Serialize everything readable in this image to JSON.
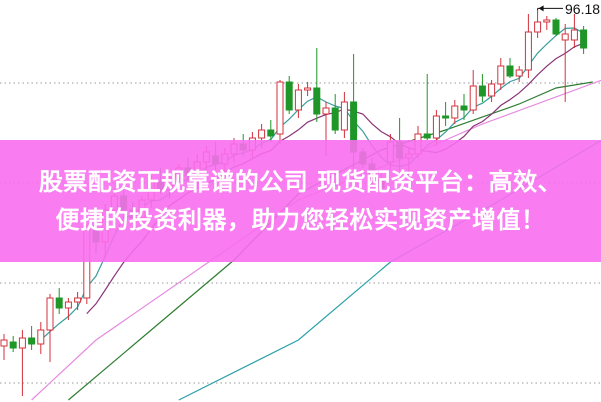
{
  "banner": {
    "line1": "股票配资正规靠谱的公司 现货配资平台：高效、",
    "line2": "便捷的投资利器，助力您轻松实现资产增值！"
  },
  "chart_data": {
    "type": "candlestick",
    "title": "",
    "grid": true,
    "high_label": "96.18",
    "colors": {
      "up": "#d2323c",
      "down": "#1e9628",
      "ma_short": "#3a9c9c",
      "ma_mid": "#8a3478",
      "pink_line": "#e58be0",
      "green_line": "#2e7d32",
      "teal_line": "#2aa0a8",
      "banner": "#f86eee"
    },
    "candles": [
      [
        79.4,
        80.0,
        78.7,
        79.7
      ],
      [
        79.6,
        79.9,
        79.1,
        79.3
      ],
      [
        79.3,
        80.2,
        76.9,
        79.8
      ],
      [
        79.8,
        80.4,
        79.2,
        79.5
      ],
      [
        79.5,
        80.6,
        79.0,
        80.2
      ],
      [
        80.2,
        82.0,
        78.6,
        81.8
      ],
      [
        81.8,
        82.3,
        81.0,
        81.3
      ],
      [
        81.3,
        81.8,
        80.7,
        81.6
      ],
      [
        81.6,
        82.1,
        81.2,
        81.8
      ],
      [
        81.8,
        85.5,
        81.5,
        85.2
      ],
      [
        85.2,
        86.0,
        84.0,
        84.6
      ],
      [
        84.6,
        86.5,
        83.8,
        86.2
      ],
      [
        86.2,
        87.3,
        85.4,
        86.9
      ],
      [
        86.9,
        87.5,
        85.8,
        86.2
      ],
      [
        86.2,
        86.6,
        85.5,
        85.8
      ],
      [
        85.8,
        86.9,
        85.5,
        86.7
      ],
      [
        86.7,
        87.9,
        86.3,
        87.6
      ],
      [
        87.6,
        88.3,
        87.0,
        87.2
      ],
      [
        87.2,
        88.0,
        86.8,
        87.8
      ],
      [
        87.8,
        88.5,
        87.1,
        88.3
      ],
      [
        88.3,
        88.8,
        87.6,
        87.9
      ],
      [
        87.9,
        89.0,
        87.4,
        88.6
      ],
      [
        88.6,
        89.4,
        88.0,
        89.1
      ],
      [
        88.9,
        89.6,
        88.2,
        88.5
      ],
      [
        88.5,
        89.3,
        88.0,
        89.0
      ],
      [
        89.0,
        89.8,
        88.6,
        89.5
      ],
      [
        89.5,
        90.0,
        88.9,
        89.2
      ],
      [
        89.2,
        90.1,
        88.8,
        89.8
      ],
      [
        89.8,
        90.5,
        89.3,
        90.2
      ],
      [
        90.2,
        90.7,
        89.6,
        89.9
      ],
      [
        90.0,
        92.7,
        89.5,
        92.6
      ],
      [
        92.6,
        92.9,
        91.0,
        91.2
      ],
      [
        91.2,
        92.5,
        90.8,
        92.2
      ],
      [
        92.2,
        92.6,
        91.9,
        92.3
      ],
      [
        92.3,
        94.3,
        90.6,
        91.0
      ],
      [
        91.0,
        91.6,
        88.9,
        91.3
      ],
      [
        91.3,
        92.0,
        90.0,
        90.2
      ],
      [
        90.2,
        92.1,
        89.8,
        91.6
      ],
      [
        91.6,
        94.0,
        87.5,
        89.1
      ],
      [
        89.1,
        89.3,
        88.3,
        88.5
      ],
      [
        88.5,
        88.8,
        87.4,
        87.7
      ],
      [
        87.7,
        88.0,
        87.1,
        87.3
      ],
      [
        88.6,
        90.0,
        88.2,
        89.6
      ],
      [
        89.6,
        90.8,
        88.2,
        88.8
      ],
      [
        88.8,
        89.3,
        87.9,
        89.0
      ],
      [
        89.0,
        90.4,
        88.8,
        90.0
      ],
      [
        90.0,
        93.0,
        89.7,
        89.8
      ],
      [
        89.8,
        91.2,
        89.4,
        90.9
      ],
      [
        90.9,
        91.6,
        90.4,
        90.8
      ],
      [
        90.8,
        91.7,
        90.5,
        91.4
      ],
      [
        91.4,
        92.0,
        90.7,
        91.2
      ],
      [
        91.2,
        93.2,
        91.0,
        92.4
      ],
      [
        92.4,
        93.0,
        91.6,
        91.9
      ],
      [
        91.9,
        92.7,
        91.6,
        92.5
      ],
      [
        92.5,
        93.8,
        92.2,
        93.4
      ],
      [
        93.4,
        93.8,
        92.8,
        92.9
      ],
      [
        92.9,
        93.4,
        92.6,
        93.2
      ],
      [
        93.2,
        96.0,
        92.8,
        95.1
      ],
      [
        95.1,
        96.18,
        94.8,
        95.6
      ],
      [
        95.6,
        95.9,
        95.2,
        95.7
      ],
      [
        95.7,
        95.8,
        94.9,
        95.0
      ],
      [
        94.7,
        95.5,
        91.6,
        95.0
      ],
      [
        94.7,
        96.0,
        94.3,
        95.2
      ],
      [
        95.2,
        95.4,
        94.0,
        94.3
      ]
    ],
    "extra_lines": [
      {
        "color_key": "pink_line",
        "points": [
          [
            3,
            76.7
          ],
          [
            10,
            79.7
          ],
          [
            21,
            83.2
          ],
          [
            32,
            86.7
          ],
          [
            43,
            88.7
          ],
          [
            52,
            90.5
          ],
          [
            65,
            92.7
          ]
        ]
      },
      {
        "color_key": "green_line",
        "points": [
          [
            7,
            76.7
          ],
          [
            16,
            80.2
          ],
          [
            25,
            83.7
          ],
          [
            32,
            87.0
          ],
          [
            41,
            89.2
          ],
          [
            48,
            90.2
          ],
          [
            56,
            91.5
          ],
          [
            60,
            92.3
          ],
          [
            64,
            92.6
          ]
        ]
      },
      {
        "color_key": "teal_line",
        "points": [
          [
            19,
            76.7
          ],
          [
            32,
            79.7
          ],
          [
            42,
            83.6
          ],
          [
            54,
            86.7
          ],
          [
            65,
            89.7
          ]
        ]
      }
    ]
  }
}
